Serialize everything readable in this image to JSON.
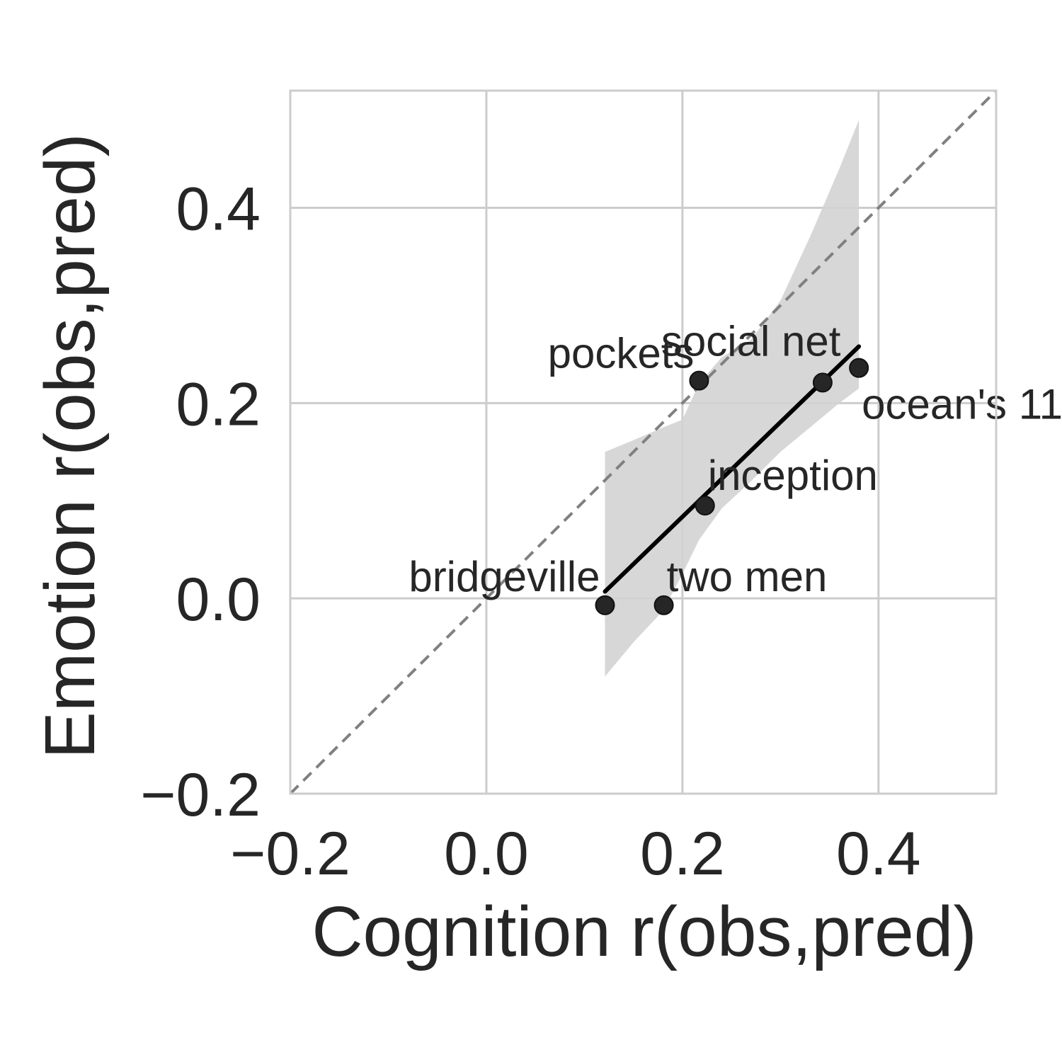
{
  "chart_data": {
    "type": "scatter",
    "xlabel": "Cognition r(obs,pred)",
    "ylabel": "Emotion r(obs,pred)",
    "xlim": [
      -0.2,
      0.52
    ],
    "ylim": [
      -0.2,
      0.52
    ],
    "xticks": [
      -0.2,
      0.0,
      0.2,
      0.4
    ],
    "yticks": [
      -0.2,
      0.0,
      0.2,
      0.4
    ],
    "xtick_labels": [
      "−0.2",
      "0.0",
      "0.2",
      "0.4"
    ],
    "ytick_labels": [
      "−0.2",
      "0.0",
      "0.2",
      "0.4"
    ],
    "grid": true,
    "identity_line": true,
    "points": [
      {
        "label": "bridgeville",
        "x": 0.121,
        "y": -0.007
      },
      {
        "label": "two men",
        "x": 0.181,
        "y": -0.007
      },
      {
        "label": "inception",
        "x": 0.223,
        "y": 0.095
      },
      {
        "label": "pockets",
        "x": 0.217,
        "y": 0.223
      },
      {
        "label": "social net",
        "x": 0.343,
        "y": 0.221
      },
      {
        "label": "ocean's 11",
        "x": 0.38,
        "y": 0.236
      }
    ],
    "regression": {
      "x": [
        0.121,
        0.38
      ],
      "y": [
        0.007,
        0.258
      ]
    },
    "confidence_band": {
      "x": [
        0.121,
        0.15,
        0.18,
        0.2,
        0.217,
        0.24,
        0.27,
        0.3,
        0.33,
        0.36,
        0.38
      ],
      "upper": [
        0.15,
        0.162,
        0.175,
        0.183,
        0.22,
        0.247,
        0.265,
        0.305,
        0.37,
        0.44,
        0.49
      ],
      "lower": [
        -0.08,
        -0.045,
        -0.013,
        0.025,
        0.06,
        0.092,
        0.12,
        0.15,
        0.175,
        0.2,
        0.215
      ]
    },
    "colors": {
      "points": "#262626",
      "regression": "#000000",
      "band": "#d3d3d3",
      "identity": "#808080"
    }
  }
}
